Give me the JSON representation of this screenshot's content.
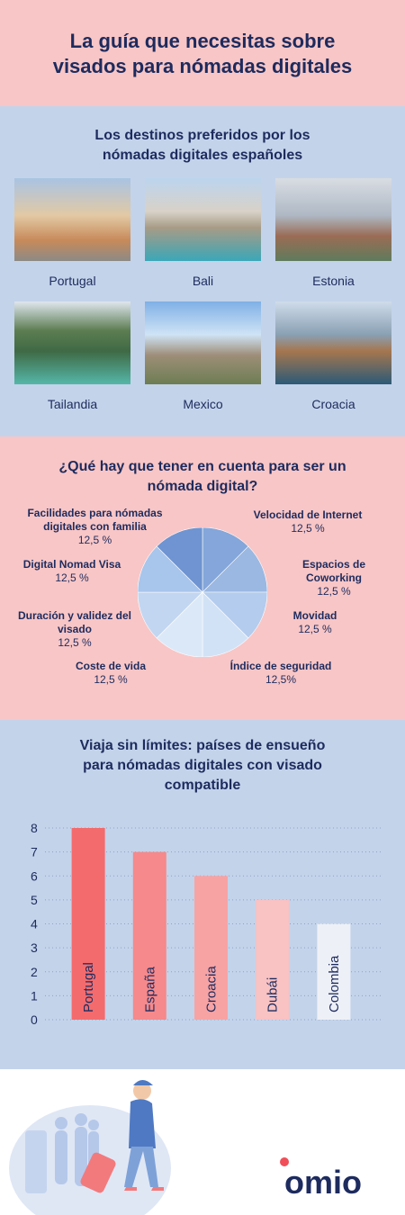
{
  "header": {
    "title": "La guía que necesitas sobre visados para nómadas digitales"
  },
  "destinations": {
    "title": "Los destinos preferidos por los nómadas digitales españoles",
    "items": [
      "Portugal",
      "Bali",
      "Estonia",
      "Tailandia",
      "Mexico",
      "Croacia"
    ]
  },
  "chart_data": [
    {
      "type": "pie",
      "title": "¿Qué hay que tener en cuenta para ser un nómada digital?",
      "categories": [
        "Velocidad de Internet",
        "Espacios de Coworking",
        "Movidad",
        "Índice de seguridad",
        "Coste de vida",
        "Duración y validez del visado",
        "Digital Nomad Visa",
        "Facilidades para nómadas digitales con familia"
      ],
      "values": [
        12.5,
        12.5,
        12.5,
        12.5,
        12.5,
        12.5,
        12.5,
        12.5
      ],
      "value_labels": [
        "12,5 %",
        "12,5 %",
        "12,5 %",
        "12,5%",
        "12,5 %",
        "12,5 %",
        "12,5 %",
        "12,5 %"
      ],
      "colors": [
        "#84a6da",
        "#9ab8e2",
        "#b4cced",
        "#d2e2f6",
        "#dbe8f8",
        "#c2d6f1",
        "#a8c5ec",
        "#6f94d1"
      ]
    },
    {
      "type": "bar",
      "title": "Viaja sin límites: países de ensueño para nómadas digitales con visado compatible",
      "categories": [
        "Portugal",
        "España",
        "Croacia",
        "Dubái",
        "Colombia"
      ],
      "values": [
        8,
        7,
        6,
        5,
        4
      ],
      "colors": [
        "#f46b6d",
        "#f6898b",
        "#f7a3a4",
        "#f9c2c3",
        "#eef0f7"
      ],
      "ylim": [
        0,
        8
      ],
      "yticks": [
        0,
        1,
        2,
        3,
        4,
        5,
        6,
        7,
        8
      ],
      "grid": true
    }
  ],
  "footer": {
    "logo": "omio"
  }
}
